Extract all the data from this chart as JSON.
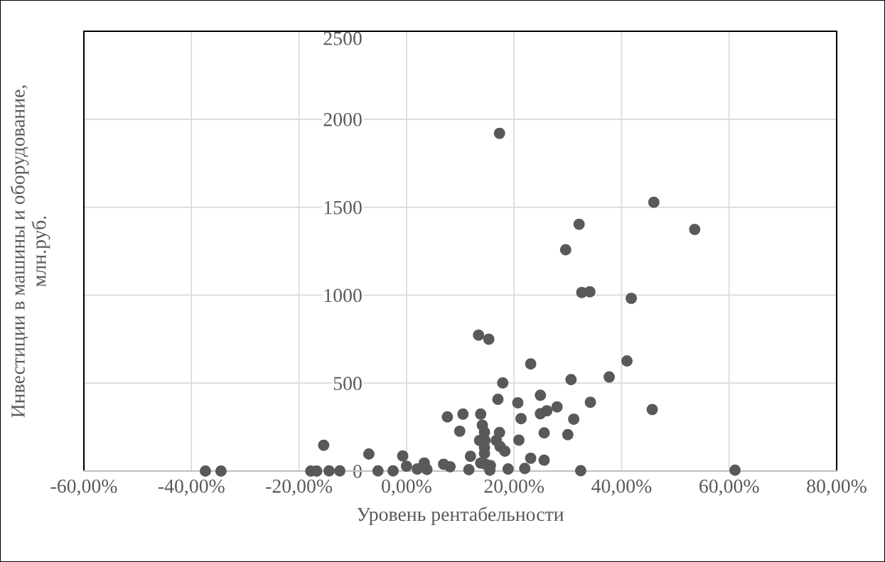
{
  "chart_data": {
    "type": "scatter",
    "xlabel": "Уровень рентабельности",
    "ylabel": "Инвестиции в машины и оборудование,\nмлн.руб.",
    "xlim": [
      -60,
      80
    ],
    "ylim": [
      0,
      2500
    ],
    "xticks": [
      {
        "value": -60,
        "label": "-60,00%"
      },
      {
        "value": -40,
        "label": "-40,00%"
      },
      {
        "value": -20,
        "label": "-20,00%"
      },
      {
        "value": 0,
        "label": "0,00%"
      },
      {
        "value": 20,
        "label": "20,00%"
      },
      {
        "value": 40,
        "label": "40,00%"
      },
      {
        "value": 60,
        "label": "60,00%"
      },
      {
        "value": 80,
        "label": "80,00%"
      }
    ],
    "yticks": [
      0,
      500,
      1000,
      1500,
      2000,
      2500
    ],
    "grid": true,
    "marker": "circle",
    "series": [
      {
        "color": "#595959",
        "x": [
          32.6,
          34.1,
          41.8,
          13.4,
          15.3,
          23.1,
          41.0,
          37.7,
          30.6,
          17.9,
          17.0,
          20.7,
          24.9,
          34.2,
          28.0,
          26.1,
          24.9,
          21.3,
          31.1,
          13.8,
          10.5,
          7.6,
          9.9,
          14.1,
          14.5,
          17.3,
          25.6,
          30.0,
          20.9,
          13.6,
          14.6,
          16.7,
          17.4,
          18.3,
          14.5,
          14.5,
          11.9,
          23.1,
          25.6,
          13.8,
          14.7,
          15.6,
          15.5,
          18.9,
          22.0,
          11.6,
          32.4,
          8.1,
          6.9,
          3.8,
          3.3,
          2.0,
          0.0,
          -0.7,
          -2.5,
          17.3,
          32.1,
          29.6,
          46.0,
          53.6,
          45.7,
          61.1,
          -37.4,
          -34.5,
          -17.8,
          -16.7,
          -14.4,
          -12.4,
          -15.4,
          -7.0,
          -5.3
        ],
        "values": [
          1015,
          1019,
          982,
          773,
          750,
          609,
          626,
          535,
          520,
          501,
          408,
          388,
          431,
          391,
          365,
          343,
          326,
          298,
          295,
          324,
          324,
          308,
          227,
          261,
          221,
          219,
          217,
          207,
          176,
          174,
          174,
          174,
          140,
          113,
          133,
          100,
          84,
          73,
          62,
          46,
          39,
          32,
          5,
          12,
          15,
          8,
          2,
          25,
          39,
          9,
          46,
          12,
          28,
          86,
          1,
          1920,
          1403,
          1258,
          1528,
          1374,
          350,
          5,
          0,
          0,
          0,
          0,
          1,
          1,
          147,
          97,
          1
        ]
      }
    ]
  }
}
